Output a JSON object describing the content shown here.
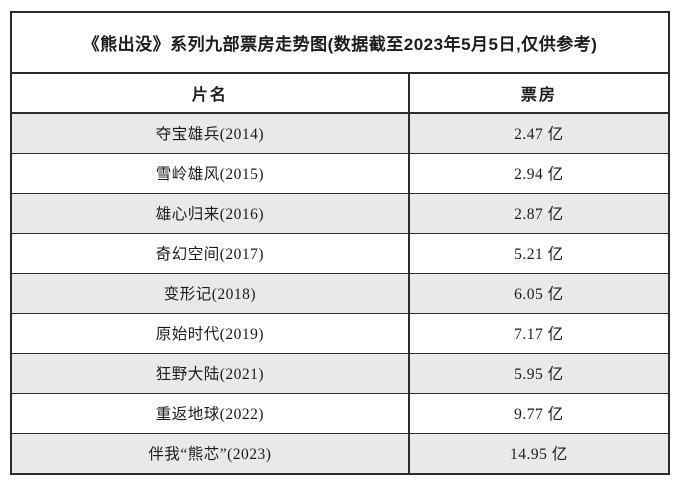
{
  "title": "《熊出没》系列九部票房走势图(数据截至2023年5月5日,仅供参考)",
  "table": {
    "headers": [
      "片名",
      "票房"
    ],
    "rows": [
      {
        "film": "夺宝雄兵(2014)",
        "box_office": "2.47 亿"
      },
      {
        "film": "雪岭雄风(2015)",
        "box_office": "2.94 亿"
      },
      {
        "film": "雄心归来(2016)",
        "box_office": "2.87 亿"
      },
      {
        "film": "奇幻空间(2017)",
        "box_office": "5.21 亿"
      },
      {
        "film": "变形记(2018)",
        "box_office": "6.05 亿"
      },
      {
        "film": "原始时代(2019)",
        "box_office": "7.17 亿"
      },
      {
        "film": "狂野大陆(2021)",
        "box_office": "5.95 亿"
      },
      {
        "film": "重返地球(2022)",
        "box_office": "9.77 亿"
      },
      {
        "film": "伴我“熊芯”(2023)",
        "box_office": "14.95 亿"
      }
    ]
  },
  "colors": {
    "border": "#2b2b2b",
    "row_shade": "#e9e9e9",
    "text": "#1c1c1c",
    "background": "#ffffff"
  },
  "chart_data": {
    "type": "table",
    "title": "《熊出没》系列九部票房走势图(数据截至2023年5月5日,仅供参考)",
    "columns": [
      "片名",
      "票房"
    ],
    "categories": [
      "夺宝雄兵(2014)",
      "雪岭雄风(2015)",
      "雄心归来(2016)",
      "奇幻空间(2017)",
      "变形记(2018)",
      "原始时代(2019)",
      "狂野大陆(2021)",
      "重返地球(2022)",
      "伴我“熊芯”(2023)"
    ],
    "values": [
      2.47,
      2.94,
      2.87,
      5.21,
      6.05,
      7.17,
      5.95,
      9.77,
      14.95
    ],
    "unit": "亿",
    "layout_hints": {
      "striped_rows": "odd rows shaded light gray",
      "alignment": "all cells centered",
      "grid": "full borders, dark"
    }
  }
}
